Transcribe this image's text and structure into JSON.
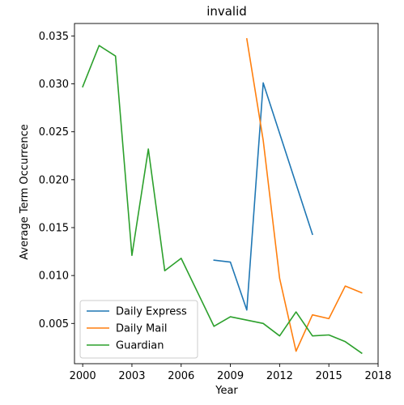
{
  "chart_data": {
    "type": "line",
    "title": "invalid",
    "xlabel": "Year",
    "ylabel": "Average Term Occurrence",
    "xlim": [
      1999.5,
      2018.0
    ],
    "ylim": [
      0.0008,
      0.0363
    ],
    "xticks": [
      2000,
      2003,
      2006,
      2009,
      2012,
      2015,
      2018
    ],
    "xtick_labels": [
      "2000",
      "2003",
      "2006",
      "2009",
      "2012",
      "2015",
      "2018"
    ],
    "yticks": [
      0.005,
      0.01,
      0.015,
      0.02,
      0.025,
      0.03,
      0.035
    ],
    "ytick_labels": [
      "0.005",
      "0.010",
      "0.015",
      "0.020",
      "0.025",
      "0.030",
      "0.035"
    ],
    "grid": false,
    "legend_position": "lower-left",
    "series": [
      {
        "name": "Daily Express",
        "color": "#1f77b4",
        "x": [
          2008,
          2009,
          2010,
          2011,
          2014
        ],
        "y": [
          0.0116,
          0.0114,
          0.0064,
          0.0301,
          0.0143
        ]
      },
      {
        "name": "Daily Mail",
        "color": "#ff7f0e",
        "x": [
          2010,
          2011,
          2012,
          2013,
          2014,
          2015,
          2016,
          2017
        ],
        "y": [
          0.0347,
          0.0241,
          0.0097,
          0.0021,
          0.0059,
          0.0055,
          0.0089,
          0.0082
        ]
      },
      {
        "name": "Guardian",
        "color": "#2ca02c",
        "x": [
          2000,
          2001,
          2002,
          2003,
          2004,
          2005,
          2006,
          2008,
          2009,
          2011,
          2012,
          2013,
          2014,
          2015,
          2016,
          2017
        ],
        "y": [
          0.0297,
          0.034,
          0.0329,
          0.0121,
          0.0232,
          0.0105,
          0.0118,
          0.0047,
          0.0057,
          0.005,
          0.0037,
          0.0062,
          0.0037,
          0.0038,
          0.0031,
          0.0019
        ]
      }
    ]
  }
}
